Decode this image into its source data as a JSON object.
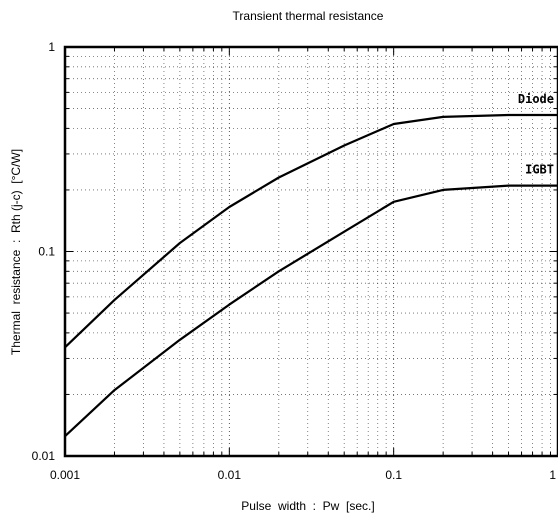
{
  "chart_data": {
    "type": "line",
    "title": "Transient  thermal  resistance",
    "xlabel": "Pulse  width  :  Pw  [sec.]",
    "ylabel": "Thermal  resistance  :  Rth (j-c)  [°C/W]",
    "x_scale": "log",
    "y_scale": "log",
    "xlim": [
      0.001,
      1
    ],
    "ylim": [
      0.01,
      1
    ],
    "grid": true,
    "x_ticks": [
      {
        "value": 0.001,
        "label": "0.001"
      },
      {
        "value": 0.01,
        "label": "0.01"
      },
      {
        "value": 0.1,
        "label": "0.1"
      },
      {
        "value": 1,
        "label": "1"
      }
    ],
    "y_ticks": [
      {
        "value": 0.01,
        "label": "0.01"
      },
      {
        "value": 0.1,
        "label": "0.1"
      },
      {
        "value": 1,
        "label": "1"
      }
    ],
    "series": [
      {
        "name": "Diode",
        "color": "#000000",
        "x": [
          0.001,
          0.002,
          0.005,
          0.01,
          0.02,
          0.05,
          0.1,
          0.2,
          0.5,
          1
        ],
        "y": [
          0.034,
          0.058,
          0.11,
          0.165,
          0.23,
          0.33,
          0.42,
          0.455,
          0.465,
          0.465
        ]
      },
      {
        "name": "IGBT",
        "color": "#000000",
        "x": [
          0.001,
          0.002,
          0.005,
          0.01,
          0.02,
          0.05,
          0.1,
          0.2,
          0.5,
          1
        ],
        "y": [
          0.0125,
          0.021,
          0.037,
          0.055,
          0.08,
          0.125,
          0.175,
          0.2,
          0.21,
          0.21
        ]
      }
    ]
  }
}
